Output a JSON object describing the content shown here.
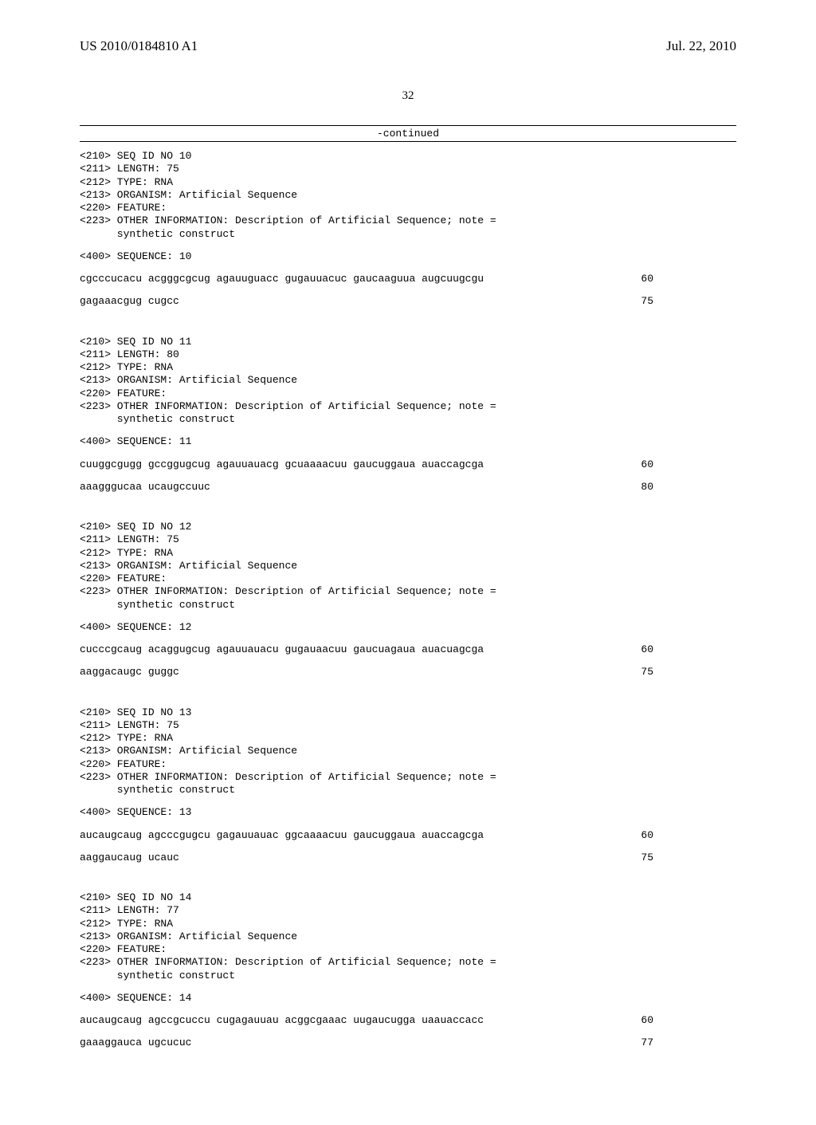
{
  "header": {
    "pub_number": "US 2010/0184810 A1",
    "pub_date": "Jul. 22, 2010"
  },
  "page_number": "32",
  "continued_label": "-continued",
  "sequences": [
    {
      "meta": [
        "<210> SEQ ID NO 10",
        "<211> LENGTH: 75",
        "<212> TYPE: RNA",
        "<213> ORGANISM: Artificial Sequence",
        "<220> FEATURE:",
        "<223> OTHER INFORMATION: Description of Artificial Sequence; note =",
        "      synthetic construct"
      ],
      "seq_label": "<400> SEQUENCE: 10",
      "data": [
        {
          "text": "cgcccucacu acgggcgcug agauuguacc gugauuacuc gaucaaguua augcuugcgu",
          "num": "60"
        },
        {
          "text": "gagaaacgug cugcc",
          "num": "75"
        }
      ]
    },
    {
      "meta": [
        "<210> SEQ ID NO 11",
        "<211> LENGTH: 80",
        "<212> TYPE: RNA",
        "<213> ORGANISM: Artificial Sequence",
        "<220> FEATURE:",
        "<223> OTHER INFORMATION: Description of Artificial Sequence; note =",
        "      synthetic construct"
      ],
      "seq_label": "<400> SEQUENCE: 11",
      "data": [
        {
          "text": "cuuggcgugg gccggugcug agauuauacg gcuaaaacuu gaucuggaua auaccagcga",
          "num": "60"
        },
        {
          "text": "aaagggucaa ucaugccuuc",
          "num": "80"
        }
      ]
    },
    {
      "meta": [
        "<210> SEQ ID NO 12",
        "<211> LENGTH: 75",
        "<212> TYPE: RNA",
        "<213> ORGANISM: Artificial Sequence",
        "<220> FEATURE:",
        "<223> OTHER INFORMATION: Description of Artificial Sequence; note =",
        "      synthetic construct"
      ],
      "seq_label": "<400> SEQUENCE: 12",
      "data": [
        {
          "text": "cucccgcaug acaggugcug agauuauacu gugauaacuu gaucuagaua auacuagcga",
          "num": "60"
        },
        {
          "text": "aaggacaugc guggc",
          "num": "75"
        }
      ]
    },
    {
      "meta": [
        "<210> SEQ ID NO 13",
        "<211> LENGTH: 75",
        "<212> TYPE: RNA",
        "<213> ORGANISM: Artificial Sequence",
        "<220> FEATURE:",
        "<223> OTHER INFORMATION: Description of Artificial Sequence; note =",
        "      synthetic construct"
      ],
      "seq_label": "<400> SEQUENCE: 13",
      "data": [
        {
          "text": "aucaugcaug agcccgugcu gagauuauac ggcaaaacuu gaucuggaua auaccagcga",
          "num": "60"
        },
        {
          "text": "aaggaucaug ucauc",
          "num": "75"
        }
      ]
    },
    {
      "meta": [
        "<210> SEQ ID NO 14",
        "<211> LENGTH: 77",
        "<212> TYPE: RNA",
        "<213> ORGANISM: Artificial Sequence",
        "<220> FEATURE:",
        "<223> OTHER INFORMATION: Description of Artificial Sequence; note =",
        "      synthetic construct"
      ],
      "seq_label": "<400> SEQUENCE: 14",
      "data": [
        {
          "text": "aucaugcaug agccgcuccu cugagauuau acggcgaaac uugaucugga uaauaccacc",
          "num": "60"
        },
        {
          "text": "gaaaggauca ugcucuc",
          "num": "77"
        }
      ]
    }
  ]
}
